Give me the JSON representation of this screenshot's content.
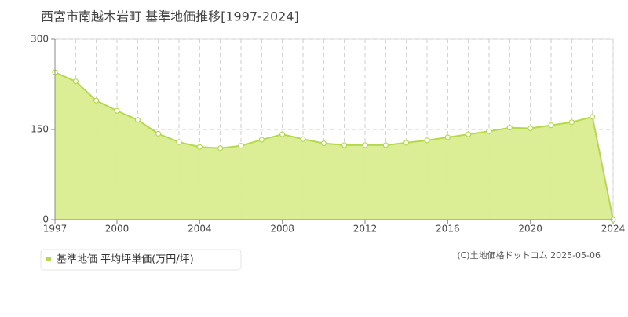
{
  "chart_data": {
    "type": "area",
    "title": "西宮市南越木岩町 基準地価推移[1997-2024]",
    "x": [
      1997,
      1998,
      1999,
      2000,
      2001,
      2002,
      2003,
      2004,
      2005,
      2006,
      2007,
      2008,
      2009,
      2010,
      2011,
      2012,
      2013,
      2014,
      2015,
      2016,
      2017,
      2018,
      2019,
      2020,
      2021,
      2022,
      2023,
      2024
    ],
    "series": [
      {
        "name": "基準地価 平均坪単価(万円/坪)",
        "color": "#b5d94b",
        "values": [
          245,
          230,
          198,
          181,
          166,
          143,
          129,
          121,
          119,
          123,
          133,
          142,
          134,
          127,
          124,
          124,
          124,
          128,
          132,
          137,
          142,
          147,
          153,
          152,
          157,
          162,
          171,
          0
        ]
      }
    ],
    "xlim": [
      1997,
      2024
    ],
    "xticks": [
      1997,
      2000,
      2004,
      2008,
      2012,
      2016,
      2020,
      2024
    ],
    "ylim": [
      0,
      300
    ],
    "yticks": [
      0,
      150,
      300
    ],
    "grid": true,
    "credit": "(C)土地価格ドットコム 2025-05-06"
  }
}
